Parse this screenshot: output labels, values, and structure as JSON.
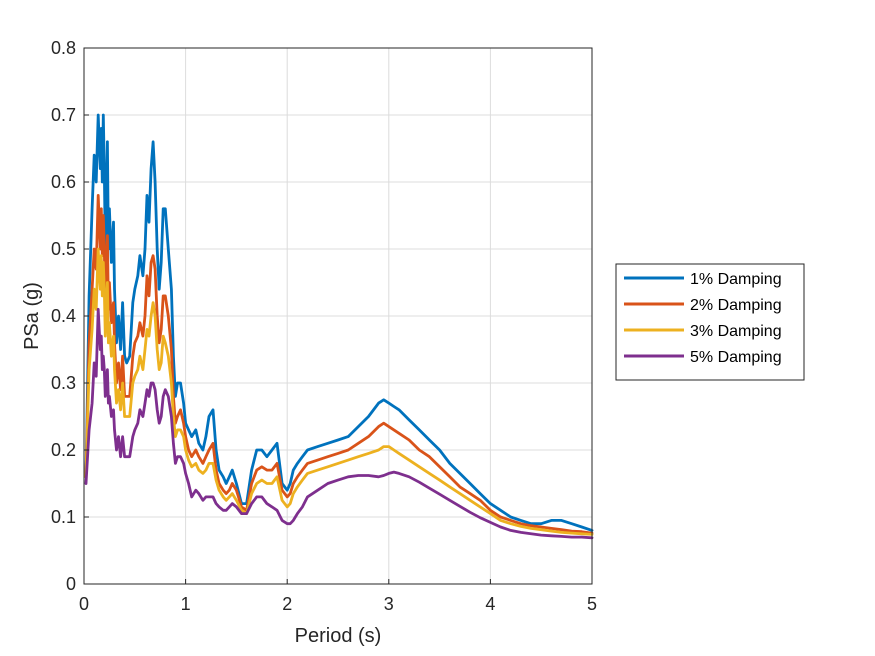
{
  "chart_data": {
    "type": "line",
    "title": "",
    "xlabel": "Period (s)",
    "ylabel": "PSa (g)",
    "xlim": [
      0,
      5
    ],
    "ylim": [
      0,
      0.8
    ],
    "xticks": [
      0,
      1,
      2,
      3,
      4,
      5
    ],
    "xtick_labels": [
      "0",
      "1",
      "2",
      "3",
      "4",
      "5"
    ],
    "yticks": [
      0,
      0.1,
      0.2,
      0.3,
      0.4,
      0.5,
      0.6,
      0.7,
      0.8
    ],
    "ytick_labels": [
      "0",
      "0.1",
      "0.2",
      "0.3",
      "0.4",
      "0.5",
      "0.6",
      "0.7",
      "0.8"
    ],
    "grid": true,
    "legend_position": "outside-right",
    "series": [
      {
        "name": "1% Damping",
        "color": "#0072BD",
        "x": [
          0.02,
          0.05,
          0.08,
          0.1,
          0.12,
          0.14,
          0.15,
          0.16,
          0.17,
          0.18,
          0.19,
          0.2,
          0.21,
          0.22,
          0.23,
          0.24,
          0.25,
          0.27,
          0.29,
          0.3,
          0.32,
          0.34,
          0.36,
          0.38,
          0.4,
          0.42,
          0.45,
          0.48,
          0.5,
          0.53,
          0.55,
          0.58,
          0.6,
          0.62,
          0.64,
          0.66,
          0.68,
          0.7,
          0.72,
          0.74,
          0.76,
          0.78,
          0.8,
          0.83,
          0.86,
          0.88,
          0.9,
          0.92,
          0.95,
          0.98,
          1.0,
          1.03,
          1.06,
          1.1,
          1.13,
          1.17,
          1.2,
          1.23,
          1.27,
          1.3,
          1.33,
          1.37,
          1.4,
          1.43,
          1.46,
          1.5,
          1.55,
          1.6,
          1.65,
          1.7,
          1.75,
          1.8,
          1.85,
          1.9,
          1.95,
          2.0,
          2.03,
          2.06,
          2.1,
          2.15,
          2.2,
          2.3,
          2.4,
          2.5,
          2.6,
          2.7,
          2.8,
          2.9,
          2.95,
          3.0,
          3.05,
          3.1,
          3.2,
          3.3,
          3.4,
          3.5,
          3.6,
          3.7,
          3.8,
          3.9,
          4.0,
          4.1,
          4.2,
          4.3,
          4.4,
          4.5,
          4.6,
          4.7,
          4.8,
          4.9,
          5.0
        ],
        "values": [
          0.16,
          0.43,
          0.56,
          0.64,
          0.6,
          0.7,
          0.66,
          0.62,
          0.68,
          0.6,
          0.7,
          0.62,
          0.5,
          0.58,
          0.66,
          0.5,
          0.56,
          0.48,
          0.54,
          0.44,
          0.36,
          0.4,
          0.35,
          0.42,
          0.34,
          0.33,
          0.34,
          0.42,
          0.44,
          0.46,
          0.49,
          0.46,
          0.5,
          0.58,
          0.54,
          0.62,
          0.66,
          0.6,
          0.5,
          0.44,
          0.48,
          0.56,
          0.56,
          0.5,
          0.44,
          0.34,
          0.28,
          0.3,
          0.3,
          0.27,
          0.24,
          0.23,
          0.22,
          0.23,
          0.21,
          0.2,
          0.22,
          0.25,
          0.26,
          0.2,
          0.17,
          0.16,
          0.15,
          0.16,
          0.17,
          0.15,
          0.12,
          0.12,
          0.17,
          0.2,
          0.2,
          0.19,
          0.2,
          0.21,
          0.15,
          0.14,
          0.15,
          0.17,
          0.18,
          0.19,
          0.2,
          0.205,
          0.21,
          0.215,
          0.22,
          0.235,
          0.25,
          0.27,
          0.275,
          0.27,
          0.265,
          0.26,
          0.245,
          0.23,
          0.215,
          0.2,
          0.18,
          0.165,
          0.15,
          0.135,
          0.12,
          0.11,
          0.1,
          0.095,
          0.09,
          0.09,
          0.095,
          0.095,
          0.09,
          0.085,
          0.08
        ]
      },
      {
        "name": "2% Damping",
        "color": "#D95319",
        "x": [
          0.02,
          0.05,
          0.08,
          0.1,
          0.12,
          0.14,
          0.15,
          0.16,
          0.17,
          0.18,
          0.19,
          0.2,
          0.21,
          0.22,
          0.23,
          0.24,
          0.25,
          0.27,
          0.29,
          0.3,
          0.32,
          0.34,
          0.36,
          0.38,
          0.4,
          0.42,
          0.45,
          0.48,
          0.5,
          0.53,
          0.55,
          0.58,
          0.6,
          0.62,
          0.64,
          0.66,
          0.68,
          0.7,
          0.72,
          0.74,
          0.76,
          0.78,
          0.8,
          0.83,
          0.86,
          0.88,
          0.9,
          0.92,
          0.95,
          0.98,
          1.0,
          1.03,
          1.06,
          1.1,
          1.13,
          1.17,
          1.2,
          1.23,
          1.27,
          1.3,
          1.33,
          1.37,
          1.4,
          1.43,
          1.46,
          1.5,
          1.55,
          1.6,
          1.65,
          1.7,
          1.75,
          1.8,
          1.85,
          1.9,
          1.95,
          2.0,
          2.03,
          2.06,
          2.1,
          2.15,
          2.2,
          2.3,
          2.4,
          2.5,
          2.6,
          2.7,
          2.8,
          2.9,
          2.95,
          3.0,
          3.05,
          3.1,
          3.2,
          3.3,
          3.4,
          3.5,
          3.6,
          3.7,
          3.8,
          3.9,
          4.0,
          4.1,
          4.2,
          4.3,
          4.4,
          4.5,
          4.6,
          4.7,
          4.8,
          4.9,
          5.0
        ],
        "values": [
          0.16,
          0.36,
          0.44,
          0.5,
          0.47,
          0.58,
          0.54,
          0.5,
          0.56,
          0.49,
          0.55,
          0.5,
          0.42,
          0.48,
          0.52,
          0.41,
          0.45,
          0.39,
          0.42,
          0.36,
          0.3,
          0.33,
          0.29,
          0.34,
          0.28,
          0.28,
          0.28,
          0.34,
          0.36,
          0.37,
          0.39,
          0.37,
          0.4,
          0.46,
          0.43,
          0.48,
          0.49,
          0.47,
          0.4,
          0.36,
          0.38,
          0.43,
          0.43,
          0.4,
          0.35,
          0.28,
          0.24,
          0.25,
          0.26,
          0.24,
          0.22,
          0.2,
          0.19,
          0.2,
          0.19,
          0.18,
          0.19,
          0.2,
          0.21,
          0.17,
          0.15,
          0.14,
          0.135,
          0.14,
          0.15,
          0.14,
          0.115,
          0.11,
          0.15,
          0.17,
          0.175,
          0.17,
          0.17,
          0.18,
          0.14,
          0.13,
          0.135,
          0.15,
          0.16,
          0.17,
          0.18,
          0.185,
          0.19,
          0.195,
          0.2,
          0.21,
          0.22,
          0.235,
          0.24,
          0.235,
          0.23,
          0.225,
          0.215,
          0.2,
          0.19,
          0.175,
          0.16,
          0.145,
          0.135,
          0.125,
          0.11,
          0.1,
          0.095,
          0.09,
          0.087,
          0.085,
          0.083,
          0.081,
          0.079,
          0.078,
          0.076
        ]
      },
      {
        "name": "3% Damping",
        "color": "#EDB120",
        "x": [
          0.02,
          0.05,
          0.08,
          0.1,
          0.12,
          0.14,
          0.15,
          0.16,
          0.17,
          0.18,
          0.19,
          0.2,
          0.21,
          0.22,
          0.23,
          0.24,
          0.25,
          0.27,
          0.29,
          0.3,
          0.32,
          0.34,
          0.36,
          0.38,
          0.4,
          0.42,
          0.45,
          0.48,
          0.5,
          0.53,
          0.55,
          0.58,
          0.6,
          0.62,
          0.64,
          0.66,
          0.68,
          0.7,
          0.72,
          0.74,
          0.76,
          0.78,
          0.8,
          0.83,
          0.86,
          0.88,
          0.9,
          0.92,
          0.95,
          0.98,
          1.0,
          1.03,
          1.06,
          1.1,
          1.13,
          1.17,
          1.2,
          1.23,
          1.27,
          1.3,
          1.33,
          1.37,
          1.4,
          1.43,
          1.46,
          1.5,
          1.55,
          1.6,
          1.65,
          1.7,
          1.75,
          1.8,
          1.85,
          1.9,
          1.95,
          2.0,
          2.03,
          2.06,
          2.1,
          2.15,
          2.2,
          2.3,
          2.4,
          2.5,
          2.6,
          2.7,
          2.8,
          2.9,
          2.95,
          3.0,
          3.05,
          3.1,
          3.2,
          3.3,
          3.4,
          3.5,
          3.6,
          3.7,
          3.8,
          3.9,
          4.0,
          4.1,
          4.2,
          4.3,
          4.4,
          4.5,
          4.6,
          4.7,
          4.8,
          4.9,
          5.0
        ],
        "values": [
          0.16,
          0.32,
          0.38,
          0.44,
          0.41,
          0.5,
          0.47,
          0.44,
          0.49,
          0.43,
          0.48,
          0.44,
          0.37,
          0.42,
          0.45,
          0.36,
          0.39,
          0.34,
          0.37,
          0.32,
          0.27,
          0.29,
          0.26,
          0.3,
          0.25,
          0.25,
          0.25,
          0.3,
          0.31,
          0.32,
          0.34,
          0.32,
          0.35,
          0.38,
          0.37,
          0.4,
          0.42,
          0.4,
          0.35,
          0.32,
          0.33,
          0.37,
          0.36,
          0.34,
          0.3,
          0.25,
          0.22,
          0.23,
          0.23,
          0.22,
          0.2,
          0.185,
          0.175,
          0.18,
          0.17,
          0.165,
          0.17,
          0.18,
          0.18,
          0.155,
          0.14,
          0.13,
          0.125,
          0.13,
          0.135,
          0.125,
          0.11,
          0.105,
          0.135,
          0.15,
          0.155,
          0.15,
          0.15,
          0.16,
          0.125,
          0.115,
          0.12,
          0.135,
          0.145,
          0.155,
          0.165,
          0.17,
          0.175,
          0.18,
          0.185,
          0.19,
          0.195,
          0.2,
          0.205,
          0.205,
          0.2,
          0.195,
          0.185,
          0.175,
          0.165,
          0.155,
          0.145,
          0.135,
          0.125,
          0.115,
          0.105,
          0.095,
          0.09,
          0.086,
          0.083,
          0.081,
          0.079,
          0.077,
          0.076,
          0.075,
          0.074
        ]
      },
      {
        "name": "5% Damping",
        "color": "#7E2F8E",
        "x": [
          0.02,
          0.05,
          0.08,
          0.1,
          0.12,
          0.14,
          0.15,
          0.16,
          0.17,
          0.18,
          0.19,
          0.2,
          0.21,
          0.22,
          0.23,
          0.24,
          0.25,
          0.27,
          0.29,
          0.3,
          0.32,
          0.34,
          0.36,
          0.38,
          0.4,
          0.42,
          0.45,
          0.48,
          0.5,
          0.53,
          0.55,
          0.58,
          0.6,
          0.62,
          0.64,
          0.66,
          0.68,
          0.7,
          0.72,
          0.74,
          0.76,
          0.78,
          0.8,
          0.83,
          0.86,
          0.88,
          0.9,
          0.92,
          0.95,
          0.98,
          1.0,
          1.03,
          1.06,
          1.1,
          1.13,
          1.17,
          1.2,
          1.23,
          1.27,
          1.3,
          1.33,
          1.37,
          1.4,
          1.43,
          1.46,
          1.5,
          1.55,
          1.6,
          1.65,
          1.7,
          1.75,
          1.8,
          1.85,
          1.9,
          1.95,
          2.0,
          2.03,
          2.06,
          2.1,
          2.15,
          2.2,
          2.3,
          2.4,
          2.5,
          2.6,
          2.7,
          2.8,
          2.9,
          2.95,
          3.0,
          3.05,
          3.1,
          3.2,
          3.3,
          3.4,
          3.5,
          3.6,
          3.7,
          3.8,
          3.9,
          4.0,
          4.1,
          4.2,
          4.3,
          4.4,
          4.5,
          4.6,
          4.7,
          4.8,
          4.9,
          5.0
        ],
        "values": [
          0.15,
          0.23,
          0.27,
          0.33,
          0.31,
          0.41,
          0.38,
          0.35,
          0.37,
          0.32,
          0.34,
          0.32,
          0.28,
          0.3,
          0.32,
          0.27,
          0.28,
          0.25,
          0.26,
          0.23,
          0.2,
          0.22,
          0.19,
          0.22,
          0.19,
          0.19,
          0.19,
          0.22,
          0.23,
          0.24,
          0.26,
          0.25,
          0.27,
          0.29,
          0.28,
          0.3,
          0.3,
          0.29,
          0.26,
          0.24,
          0.25,
          0.28,
          0.29,
          0.28,
          0.25,
          0.21,
          0.18,
          0.19,
          0.19,
          0.18,
          0.165,
          0.15,
          0.13,
          0.14,
          0.135,
          0.125,
          0.13,
          0.13,
          0.13,
          0.12,
          0.115,
          0.11,
          0.11,
          0.115,
          0.12,
          0.115,
          0.105,
          0.105,
          0.12,
          0.13,
          0.13,
          0.12,
          0.115,
          0.11,
          0.095,
          0.09,
          0.09,
          0.095,
          0.105,
          0.115,
          0.13,
          0.14,
          0.15,
          0.155,
          0.16,
          0.162,
          0.162,
          0.16,
          0.162,
          0.165,
          0.167,
          0.165,
          0.16,
          0.152,
          0.143,
          0.134,
          0.125,
          0.116,
          0.107,
          0.099,
          0.092,
          0.085,
          0.08,
          0.077,
          0.075,
          0.073,
          0.072,
          0.071,
          0.07,
          0.07,
          0.069
        ]
      }
    ]
  }
}
